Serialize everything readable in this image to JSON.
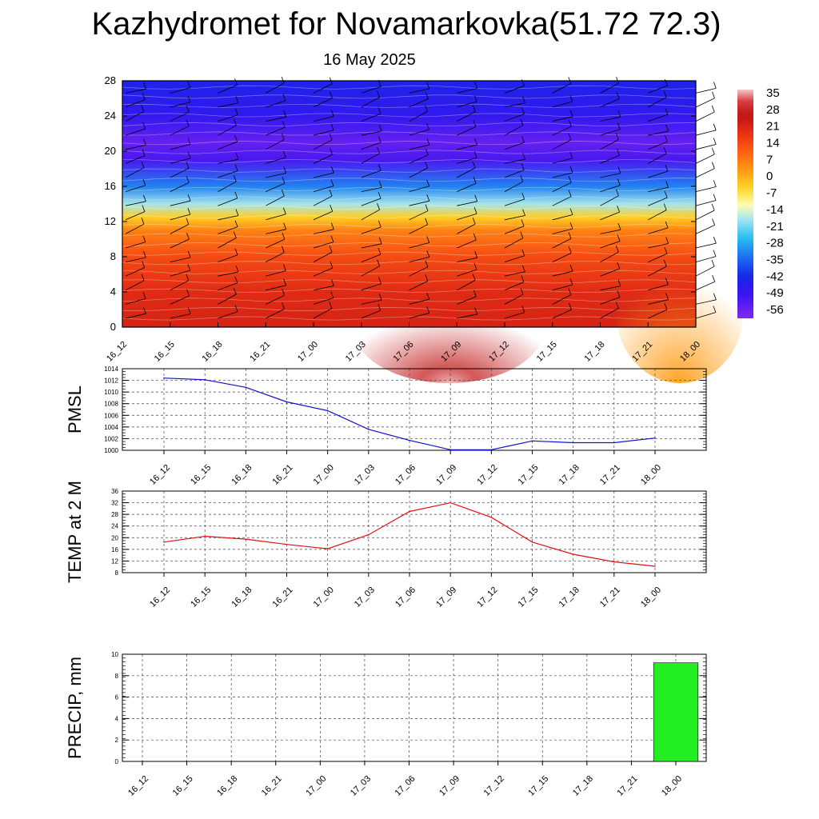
{
  "title": "Kazhydromet for Novamarkovka(51.72 72.3)",
  "subtitle": "16 May 2025",
  "time_labels": [
    "16_12",
    "16_15",
    "16_18",
    "16_21",
    "17_00",
    "17_03",
    "17_06",
    "17_09",
    "17_12",
    "17_15",
    "17_18",
    "17_21",
    "18_00"
  ],
  "colors": {
    "pmsl_line": "#1010d0",
    "temp_line": "#e01010",
    "precip_bar": "#22ee22"
  },
  "chart_data": [
    {
      "type": "heatmap",
      "title": "",
      "x_categories": [
        "16_12",
        "16_15",
        "16_18",
        "16_21",
        "17_00",
        "17_03",
        "17_06",
        "17_09",
        "17_12",
        "17_15",
        "17_18",
        "17_21",
        "18_00"
      ],
      "ylim": [
        0,
        28
      ],
      "yticks": [
        "0",
        "4",
        "8",
        "12",
        "16",
        "20",
        "24",
        "28"
      ],
      "colorbar": {
        "labels": [
          "35",
          "28",
          "21",
          "14",
          "7",
          "0",
          "-7",
          "-14",
          "-21",
          "-28",
          "-35",
          "-42",
          "-49",
          "-56"
        ],
        "range": [
          -60,
          37
        ]
      },
      "temperature_profile_by_height": [
        {
          "y": 0,
          "t": 22
        },
        {
          "y": 4,
          "t": 20
        },
        {
          "y": 8,
          "t": 14
        },
        {
          "y": 11,
          "t": 6
        },
        {
          "y": 12.5,
          "t": -4
        },
        {
          "y": 14,
          "t": -18
        },
        {
          "y": 16,
          "t": -32
        },
        {
          "y": 19,
          "t": -52
        },
        {
          "y": 21,
          "t": -56
        },
        {
          "y": 24,
          "t": -48
        },
        {
          "y": 28,
          "t": -44
        }
      ],
      "overlay": "wind barbs"
    },
    {
      "type": "line",
      "ylabel": "PMSL",
      "x": [
        "16_12",
        "16_15",
        "16_18",
        "16_21",
        "17_00",
        "17_03",
        "17_06",
        "17_09",
        "17_12",
        "17_15",
        "17_18",
        "17_21",
        "18_00"
      ],
      "series": [
        {
          "values": [
            1012.4,
            1012.1,
            1010.8,
            1008.3,
            1006.8,
            1003.6,
            1001.7,
            1000.1,
            1000.1,
            1001.6,
            1001.3,
            1001.3,
            1002.1
          ]
        }
      ],
      "ylim": [
        1000,
        1014
      ],
      "yticks": [
        "1000",
        "1002",
        "1004",
        "1006",
        "1008",
        "1010",
        "1012",
        "1014"
      ],
      "grid": true
    },
    {
      "type": "line",
      "ylabel": "TEMP at 2 M",
      "x": [
        "16_12",
        "16_15",
        "16_18",
        "16_21",
        "17_00",
        "17_03",
        "17_06",
        "17_09",
        "17_12",
        "17_15",
        "17_18",
        "17_21",
        "18_00"
      ],
      "series": [
        {
          "values": [
            18.5,
            20.5,
            19.5,
            17.7,
            16.2,
            21.0,
            29.0,
            32.0,
            27.0,
            18.5,
            14.3,
            11.7,
            10.2
          ]
        }
      ],
      "ylim": [
        8,
        36
      ],
      "yticks": [
        "8",
        "12",
        "16",
        "20",
        "24",
        "28",
        "32",
        "36"
      ],
      "grid": true
    },
    {
      "type": "bar",
      "ylabel": "PRECIP, mm",
      "categories": [
        "16_12",
        "16_15",
        "16_18",
        "16_21",
        "17_00",
        "17_03",
        "17_06",
        "17_09",
        "17_12",
        "17_15",
        "17_18",
        "17_21",
        "18_00"
      ],
      "values": [
        0,
        0,
        0,
        0,
        0,
        0,
        0,
        0,
        0,
        0,
        0,
        0,
        9.2
      ],
      "ylim": [
        0,
        10
      ],
      "yticks": [
        "0",
        "2",
        "4",
        "6",
        "8",
        "10"
      ],
      "grid": true
    }
  ]
}
